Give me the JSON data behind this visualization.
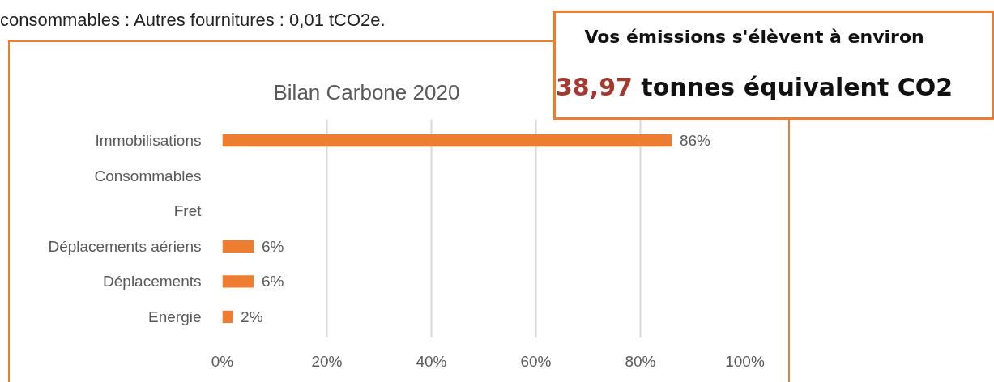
{
  "chart_data": {
    "type": "bar",
    "orientation": "horizontal",
    "title": "Bilan Carbone 2020",
    "categories": [
      "Immobilisations",
      "Consommables",
      "Fret",
      "Déplacements aériens",
      "Déplacements",
      "Energie"
    ],
    "values": [
      86,
      0,
      0,
      6,
      6,
      2
    ],
    "value_labels": [
      "86%",
      null,
      null,
      "6%",
      "6%",
      "2%"
    ],
    "color": "#ed7d31",
    "xlim": [
      0,
      100
    ],
    "xticks": [
      {
        "value": 0,
        "label": "0%"
      },
      {
        "value": 20,
        "label": "20%"
      },
      {
        "value": 40,
        "label": "40%"
      },
      {
        "value": 60,
        "label": "60%"
      },
      {
        "value": 80,
        "label": "80%"
      },
      {
        "value": 100,
        "label": "100%"
      }
    ],
    "grid": "x",
    "annotations": [
      "consommables : Autres fournitures : 0,01 tCO2e.",
      "Vos émissions s'élèvent à environ",
      "38,97",
      "tonnes équivalent CO2"
    ]
  }
}
